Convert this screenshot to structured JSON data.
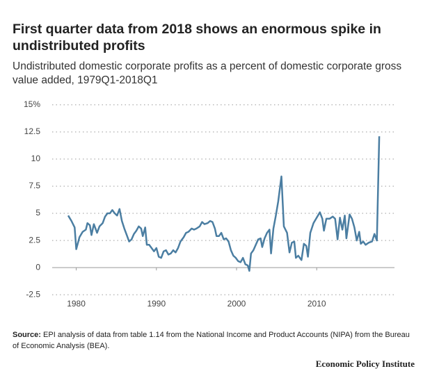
{
  "chart_data": {
    "type": "line",
    "title": "First quarter data from 2018 shows an enormous spike in undistributed profits",
    "subtitle": "Undistributed domestic corporate profits as a percent of domestic corporate gross value added, 1979Q1-2018Q1",
    "x": [
      1979.0,
      1979.4,
      1979.8,
      1980.0,
      1980.4,
      1980.8,
      1981.2,
      1981.4,
      1981.7,
      1981.9,
      1982.2,
      1982.6,
      1982.9,
      1983.3,
      1983.6,
      1983.9,
      1984.2,
      1984.5,
      1984.8,
      1985.1,
      1985.4,
      1985.7,
      1986.0,
      1986.3,
      1986.6,
      1986.9,
      1987.2,
      1987.5,
      1987.8,
      1988.1,
      1988.3,
      1988.6,
      1988.8,
      1989.1,
      1989.4,
      1989.7,
      1990.0,
      1990.3,
      1990.6,
      1990.9,
      1991.2,
      1991.5,
      1991.8,
      1992.1,
      1992.4,
      1992.7,
      1993.0,
      1993.4,
      1993.7,
      1994.0,
      1994.4,
      1994.7,
      1995.0,
      1995.4,
      1995.7,
      1996.0,
      1996.4,
      1996.7,
      1997.0,
      1997.3,
      1997.5,
      1997.8,
      1998.1,
      1998.4,
      1998.7,
      1999.0,
      1999.3,
      1999.6,
      1999.9,
      2000.2,
      2000.5,
      2000.8,
      2001.1,
      2001.4,
      2001.6,
      2001.8,
      2002.1,
      2002.4,
      2002.7,
      2003.0,
      2003.2,
      2003.5,
      2003.8,
      2004.1,
      2004.3,
      2004.6,
      2004.9,
      2005.2,
      2005.6,
      2005.9,
      2006.3,
      2006.6,
      2006.9,
      2007.2,
      2007.4,
      2007.7,
      2008.1,
      2008.4,
      2008.7,
      2008.9,
      2009.2,
      2009.6,
      2010.0,
      2010.4,
      2010.7,
      2010.9,
      2011.2,
      2011.6,
      2012.0,
      2012.3,
      2012.6,
      2012.9,
      2013.2,
      2013.5,
      2013.7,
      2014.1,
      2014.4,
      2014.7,
      2015.0,
      2015.3,
      2015.5,
      2015.8,
      2016.1,
      2016.5,
      2016.9,
      2017.2,
      2017.5,
      2017.8
    ],
    "series": [
      {
        "color": "#4b7ea2",
        "values": [
          4.8,
          4.3,
          3.7,
          1.7,
          2.8,
          3.3,
          3.5,
          4.1,
          3.9,
          3.0,
          4.0,
          3.2,
          3.8,
          4.1,
          4.7,
          5.0,
          5.0,
          5.3,
          5.0,
          4.8,
          5.4,
          4.3,
          3.6,
          3.0,
          2.4,
          2.6,
          3.1,
          3.4,
          3.8,
          3.6,
          2.9,
          3.7,
          2.1,
          2.1,
          1.8,
          1.5,
          1.8,
          1.0,
          0.9,
          1.5,
          1.6,
          1.2,
          1.3,
          1.6,
          1.4,
          1.8,
          2.4,
          2.8,
          3.2,
          3.3,
          3.6,
          3.5,
          3.6,
          3.8,
          4.2,
          4.0,
          4.1,
          4.3,
          4.2,
          3.6,
          2.9,
          2.9,
          3.2,
          2.6,
          2.7,
          2.4,
          1.6,
          1.1,
          0.9,
          0.6,
          0.5,
          0.9,
          0.3,
          0.2,
          -0.3,
          1.3,
          1.6,
          2.1,
          2.6,
          2.7,
          1.9,
          2.7,
          3.2,
          3.5,
          1.3,
          3.6,
          4.8,
          6.1,
          8.4,
          3.8,
          3.2,
          1.4,
          2.3,
          2.4,
          0.9,
          1.1,
          0.7,
          2.2,
          2.0,
          1.0,
          3.2,
          4.1,
          4.6,
          5.1,
          4.5,
          3.4,
          4.5,
          4.5,
          4.7,
          4.5,
          2.6,
          4.6,
          3.5,
          4.8,
          2.7,
          4.9,
          4.5,
          3.7,
          2.5,
          3.3,
          2.2,
          2.4,
          2.1,
          2.3,
          2.4,
          3.1,
          2.5,
          12.1
        ]
      }
    ],
    "xlim": [
      1977,
      2019.7
    ],
    "xticks": [
      1980,
      1990,
      2000,
      2010
    ],
    "ylim": [
      -3,
      15.5
    ],
    "yticks": [
      -2.5,
      0,
      2.5,
      5,
      7.5,
      10,
      12.5,
      {
        "value": 15,
        "label": "15%"
      }
    ],
    "grid": true
  },
  "source_label": "Source:",
  "source_text": "EPI analysis of data from table 1.14 from the National Income and Product Accounts (NIPA) from the Bureau of Economic Analysis (BEA).",
  "brand": "Economic Policy Institute"
}
